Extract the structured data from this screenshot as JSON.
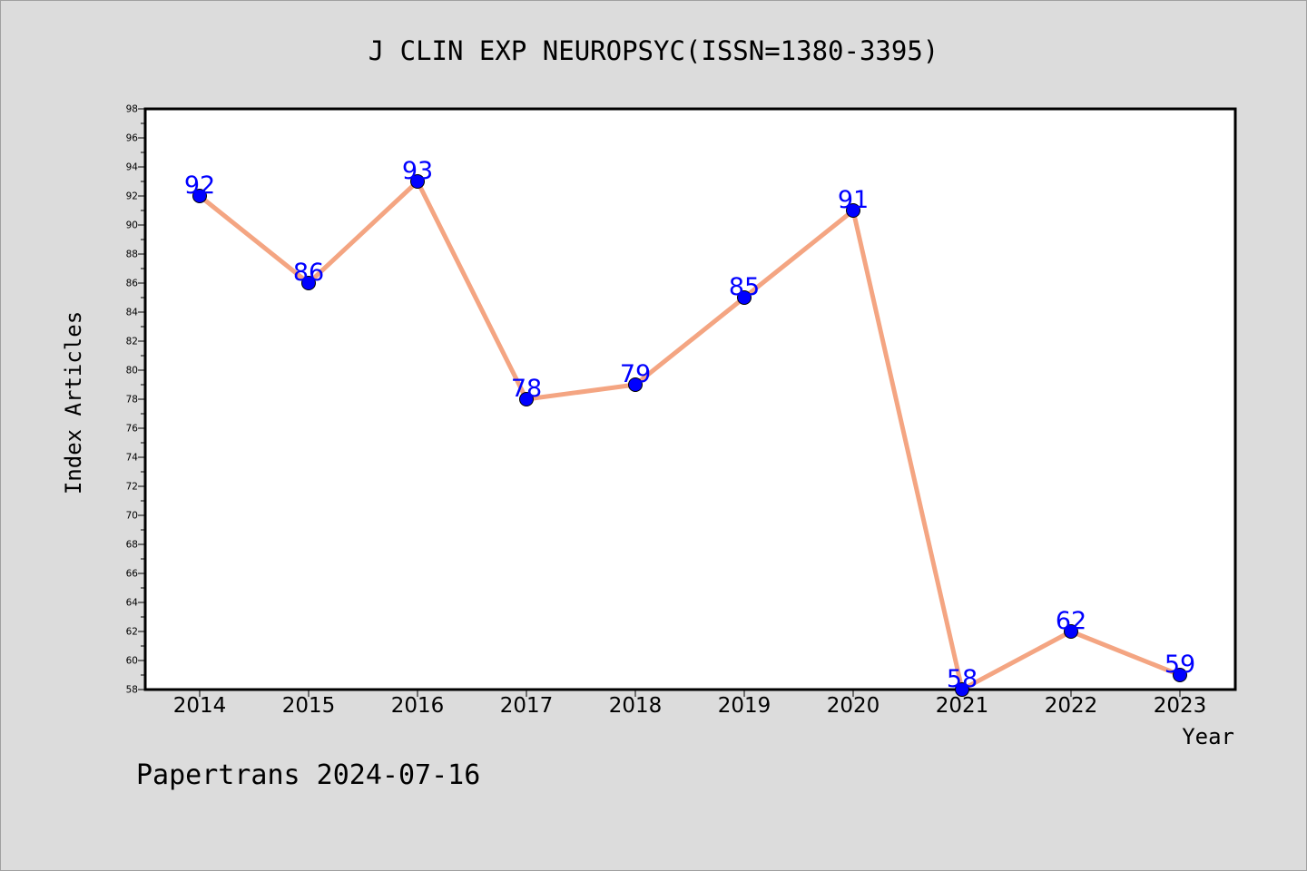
{
  "chart_data": {
    "type": "line",
    "title": "J CLIN EXP NEUROPSYC(ISSN=1380-3395)",
    "xlabel": "Year",
    "ylabel": "Index Articles",
    "footer": "Papertrans 2024-07-16",
    "categories": [
      "2014",
      "2015",
      "2016",
      "2017",
      "2018",
      "2019",
      "2020",
      "2021",
      "2022",
      "2023"
    ],
    "series": [
      {
        "values": [
          92,
          86,
          93,
          78,
          79,
          85,
          91,
          58,
          62,
          59
        ]
      }
    ],
    "ylim": [
      58,
      98
    ],
    "y_ticks": [
      "58",
      "60",
      "62",
      "64",
      "66",
      "68",
      "70",
      "72",
      "74",
      "76",
      "78",
      "80",
      "82",
      "84",
      "86",
      "88",
      "90",
      "92",
      "94",
      "96",
      "98"
    ],
    "grid": false,
    "colors": {
      "line": "#f4a582",
      "marker": "#0000ff",
      "label": "#0000ff",
      "background": "#dcdcdc",
      "plot_background": "#ffffff"
    }
  }
}
